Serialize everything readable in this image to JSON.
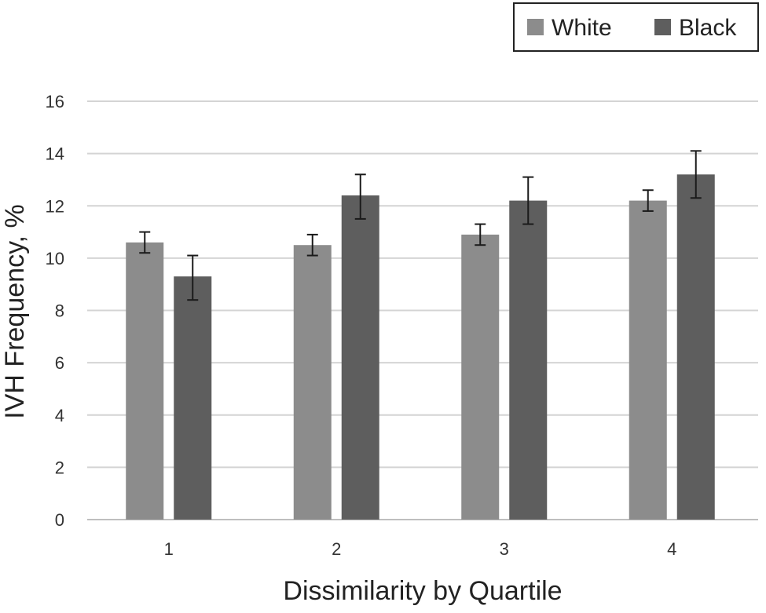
{
  "chart_data": {
    "type": "bar",
    "title": "",
    "xlabel": "Dissimilarity by Quartile",
    "ylabel": "IVH Frequency, %",
    "categories": [
      "1",
      "2",
      "3",
      "4"
    ],
    "ylim": [
      0,
      16
    ],
    "yticks": [
      0,
      2,
      4,
      6,
      8,
      10,
      12,
      14,
      16
    ],
    "grid": true,
    "legend_position": "top-right",
    "series": [
      {
        "name": "White",
        "color": "#8c8c8c",
        "values": [
          10.6,
          10.5,
          10.9,
          12.2
        ],
        "error_low": [
          10.2,
          10.1,
          10.5,
          11.8
        ],
        "error_high": [
          11.0,
          10.9,
          11.3,
          12.6
        ]
      },
      {
        "name": "Black",
        "color": "#5e5e5e",
        "values": [
          9.3,
          12.4,
          12.2,
          13.2
        ],
        "error_low": [
          8.4,
          11.5,
          11.3,
          12.3
        ],
        "error_high": [
          10.1,
          13.2,
          13.1,
          14.1
        ]
      }
    ]
  }
}
